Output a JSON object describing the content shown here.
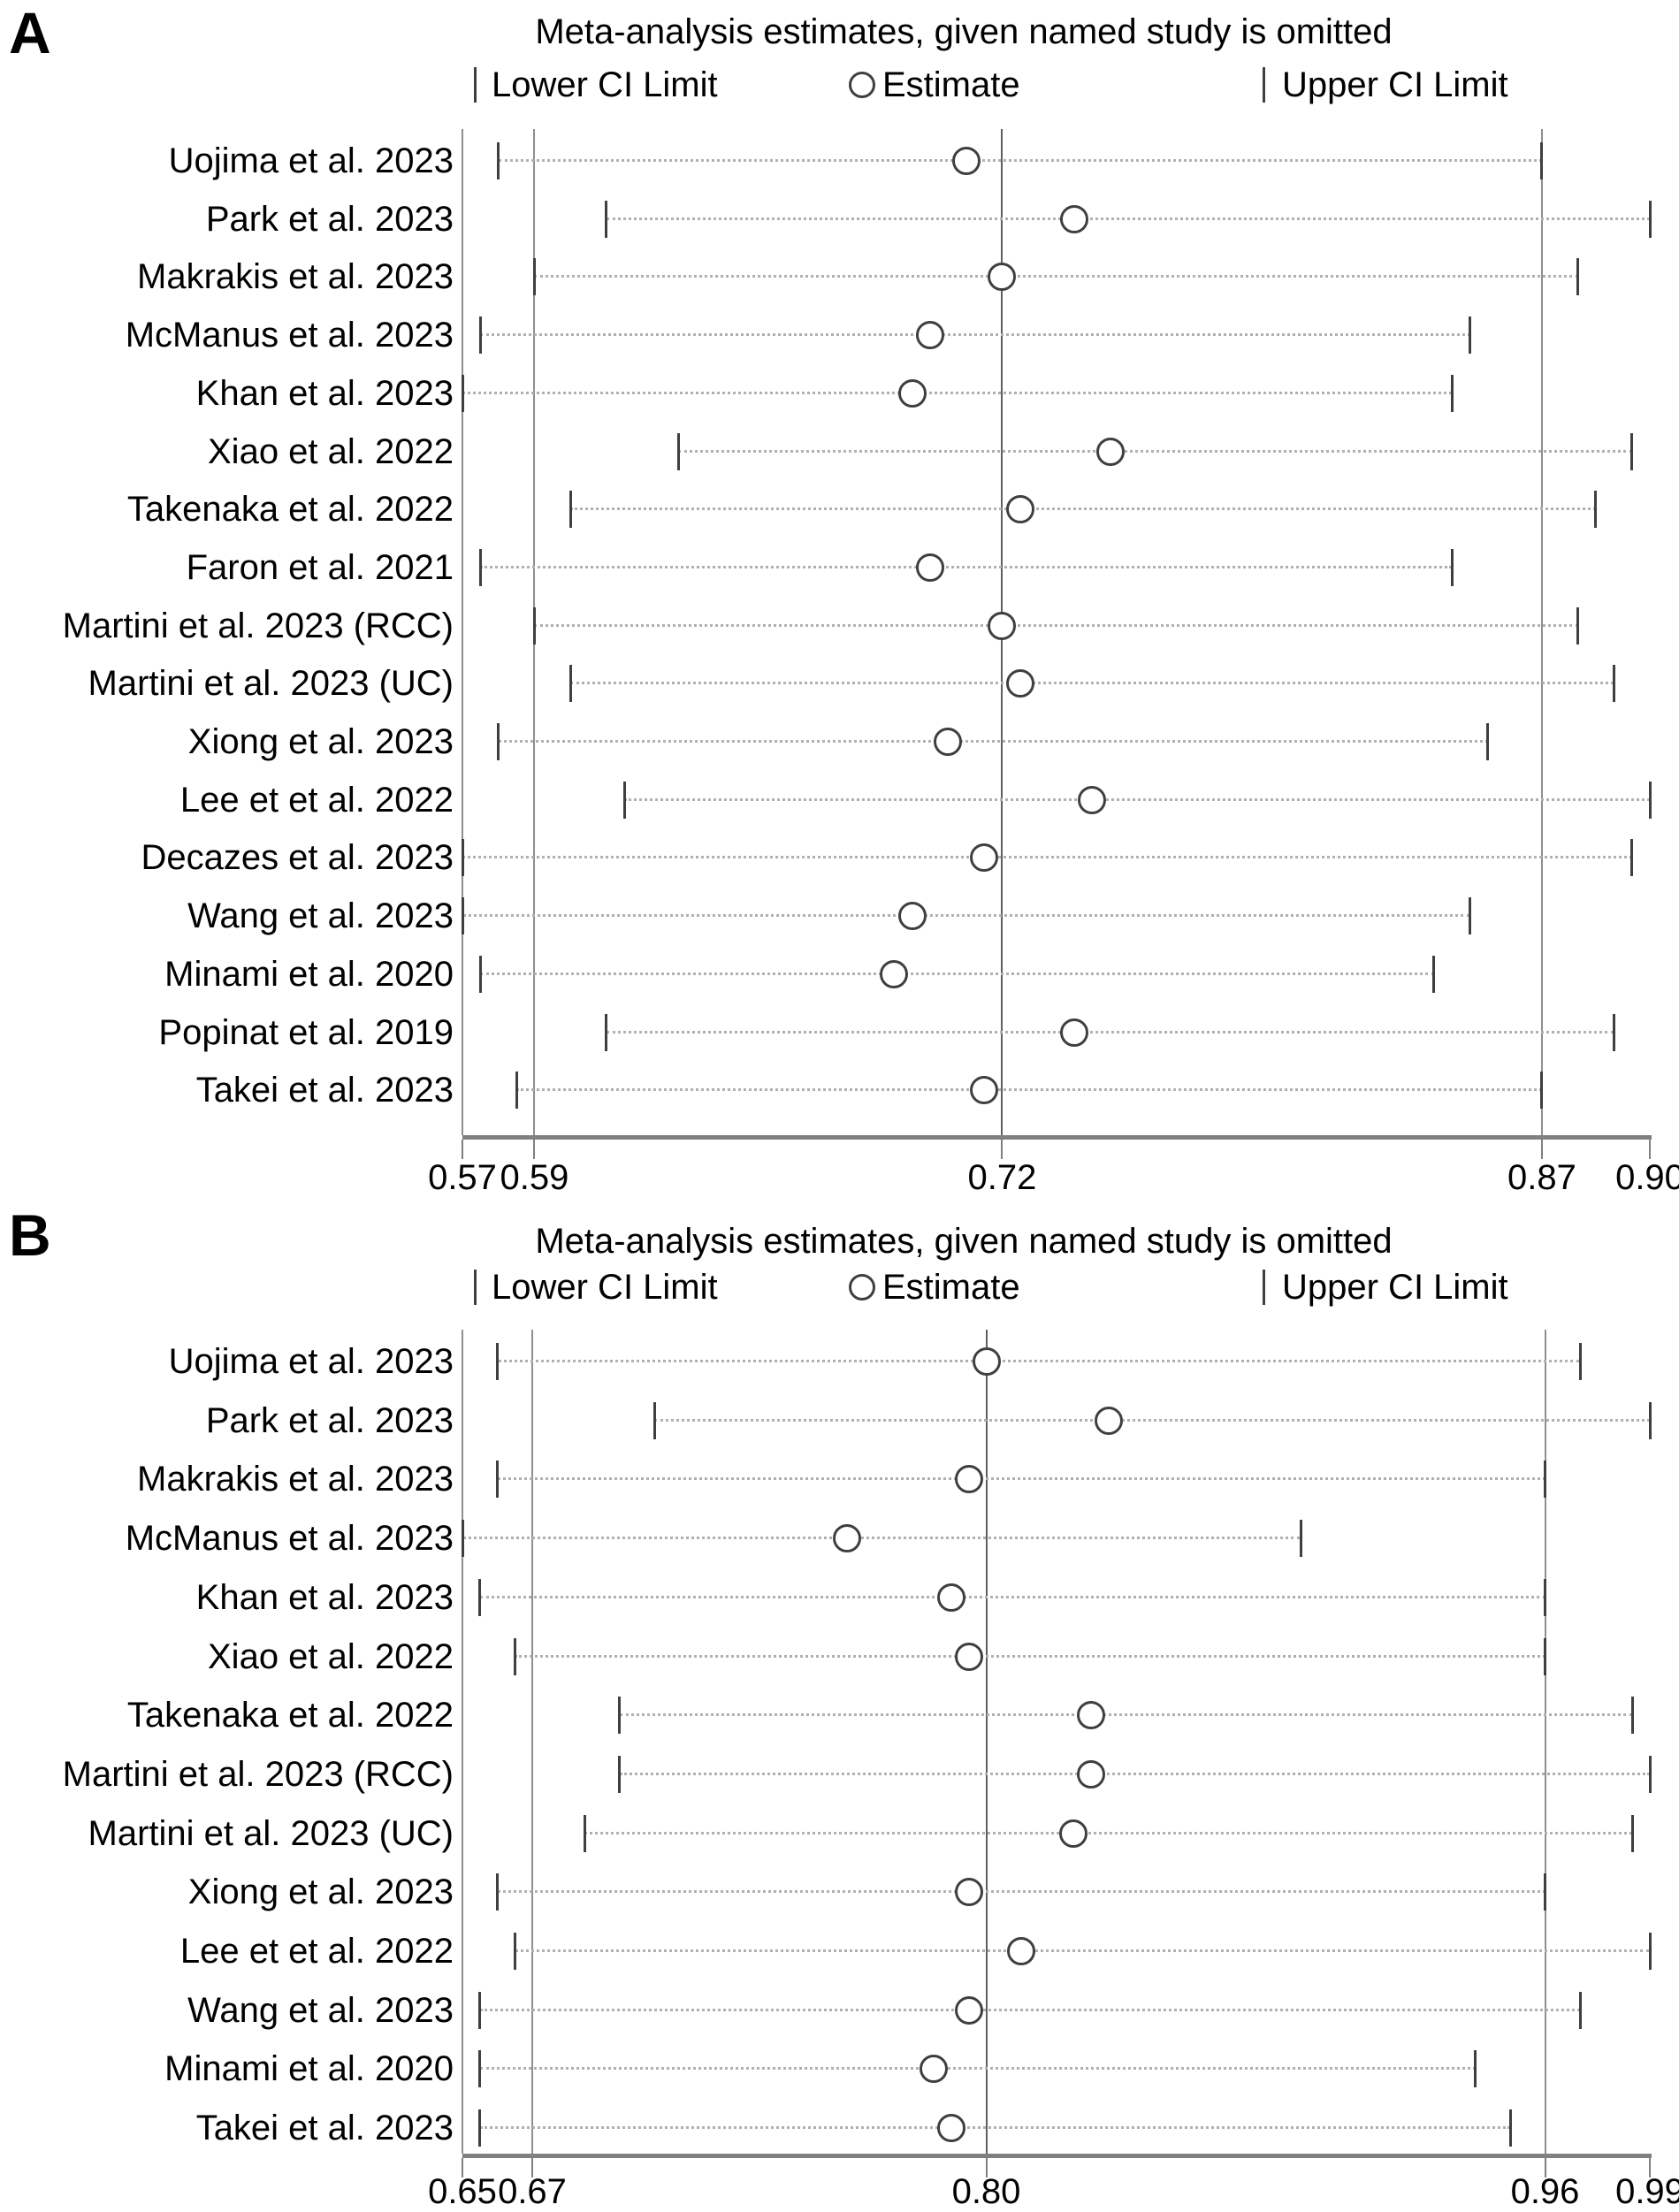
{
  "figure_type": "leave-one-out sensitivity forest plots",
  "colors": {
    "text": "#000000",
    "tick": "#3f3f3f",
    "grid": "#8f8f8f",
    "grid_center": "#5f5f5f",
    "axis": "#808080",
    "dotted": "#b0b0b0"
  },
  "chart_data": [
    {
      "type": "scatter",
      "panel_label": "A",
      "title": "Meta-analysis estimates, given named study is omitted",
      "legend": [
        "Lower CI Limit",
        "Estimate",
        "Upper CI Limit"
      ],
      "xlim": [
        0.57,
        0.9
      ],
      "x_ticks": [
        0.57,
        0.59,
        0.72,
        0.87,
        0.9
      ],
      "x_tick_labels": [
        "0.57",
        "0.59",
        "0.72",
        "0.87",
        "0.90"
      ],
      "gridlines": [
        0.57,
        0.59,
        0.72,
        0.87
      ],
      "pooled_estimate": 0.72,
      "studies": [
        {
          "label": "Uojima et al. 2023",
          "lower": 0.58,
          "estimate": 0.71,
          "upper": 0.87
        },
        {
          "label": "Park et al. 2023",
          "lower": 0.61,
          "estimate": 0.74,
          "upper": 0.9
        },
        {
          "label": "Makrakis et al. 2023",
          "lower": 0.59,
          "estimate": 0.72,
          "upper": 0.88
        },
        {
          "label": "McManus et al. 2023",
          "lower": 0.575,
          "estimate": 0.7,
          "upper": 0.85
        },
        {
          "label": "Khan et al. 2023",
          "lower": 0.57,
          "estimate": 0.695,
          "upper": 0.845
        },
        {
          "label": "Xiao et al. 2022",
          "lower": 0.63,
          "estimate": 0.75,
          "upper": 0.895
        },
        {
          "label": "Takenaka et al. 2022",
          "lower": 0.6,
          "estimate": 0.725,
          "upper": 0.885
        },
        {
          "label": "Faron et al. 2021",
          "lower": 0.575,
          "estimate": 0.7,
          "upper": 0.845
        },
        {
          "label": "Martini et al. 2023 (RCC)",
          "lower": 0.59,
          "estimate": 0.72,
          "upper": 0.88
        },
        {
          "label": "Martini et al. 2023 (UC)",
          "lower": 0.6,
          "estimate": 0.725,
          "upper": 0.89
        },
        {
          "label": "Xiong et al. 2023",
          "lower": 0.58,
          "estimate": 0.705,
          "upper": 0.855
        },
        {
          "label": "Lee et et al. 2022",
          "lower": 0.615,
          "estimate": 0.745,
          "upper": 0.9
        },
        {
          "label": "Decazes et al. 2023",
          "lower": 0.57,
          "estimate": 0.715,
          "upper": 0.895
        },
        {
          "label": "Wang et al. 2023",
          "lower": 0.57,
          "estimate": 0.695,
          "upper": 0.85
        },
        {
          "label": "Minami et al. 2020",
          "lower": 0.575,
          "estimate": 0.69,
          "upper": 0.84
        },
        {
          "label": "Popinat et al. 2019",
          "lower": 0.61,
          "estimate": 0.74,
          "upper": 0.89
        },
        {
          "label": "Takei et al. 2023",
          "lower": 0.585,
          "estimate": 0.715,
          "upper": 0.87
        }
      ]
    },
    {
      "type": "scatter",
      "panel_label": "B",
      "title": "Meta-analysis estimates, given named study is omitted",
      "legend": [
        "Lower CI Limit",
        "Estimate",
        "Upper CI Limit"
      ],
      "xlim": [
        0.65,
        0.99
      ],
      "x_ticks": [
        0.65,
        0.67,
        0.8,
        0.96,
        0.99
      ],
      "x_tick_labels": [
        "0.65",
        "0.67",
        "0.80",
        "0.96",
        "0.99"
      ],
      "gridlines": [
        0.65,
        0.67,
        0.8,
        0.96
      ],
      "pooled_estimate": 0.8,
      "studies": [
        {
          "label": "Uojima et al. 2023",
          "lower": 0.66,
          "estimate": 0.8,
          "upper": 0.97
        },
        {
          "label": "Park et al. 2023",
          "lower": 0.705,
          "estimate": 0.835,
          "upper": 0.99
        },
        {
          "label": "Makrakis et al. 2023",
          "lower": 0.66,
          "estimate": 0.795,
          "upper": 0.96
        },
        {
          "label": "McManus et al. 2023",
          "lower": 0.65,
          "estimate": 0.76,
          "upper": 0.89
        },
        {
          "label": "Khan et al. 2023",
          "lower": 0.655,
          "estimate": 0.79,
          "upper": 0.96
        },
        {
          "label": "Xiao et al. 2022",
          "lower": 0.665,
          "estimate": 0.795,
          "upper": 0.96
        },
        {
          "label": "Takenaka et al. 2022",
          "lower": 0.695,
          "estimate": 0.83,
          "upper": 0.985
        },
        {
          "label": "Martini et al. 2023 (RCC)",
          "lower": 0.695,
          "estimate": 0.83,
          "upper": 0.99
        },
        {
          "label": "Martini et al. 2023 (UC)",
          "lower": 0.685,
          "estimate": 0.825,
          "upper": 0.985
        },
        {
          "label": "Xiong et al. 2023",
          "lower": 0.66,
          "estimate": 0.795,
          "upper": 0.96
        },
        {
          "label": "Lee et et al. 2022",
          "lower": 0.665,
          "estimate": 0.81,
          "upper": 0.99
        },
        {
          "label": "Wang et al. 2023",
          "lower": 0.655,
          "estimate": 0.795,
          "upper": 0.97
        },
        {
          "label": "Minami et al. 2020",
          "lower": 0.655,
          "estimate": 0.785,
          "upper": 0.94
        },
        {
          "label": "Takei et al. 2023",
          "lower": 0.655,
          "estimate": 0.79,
          "upper": 0.95
        }
      ]
    }
  ]
}
